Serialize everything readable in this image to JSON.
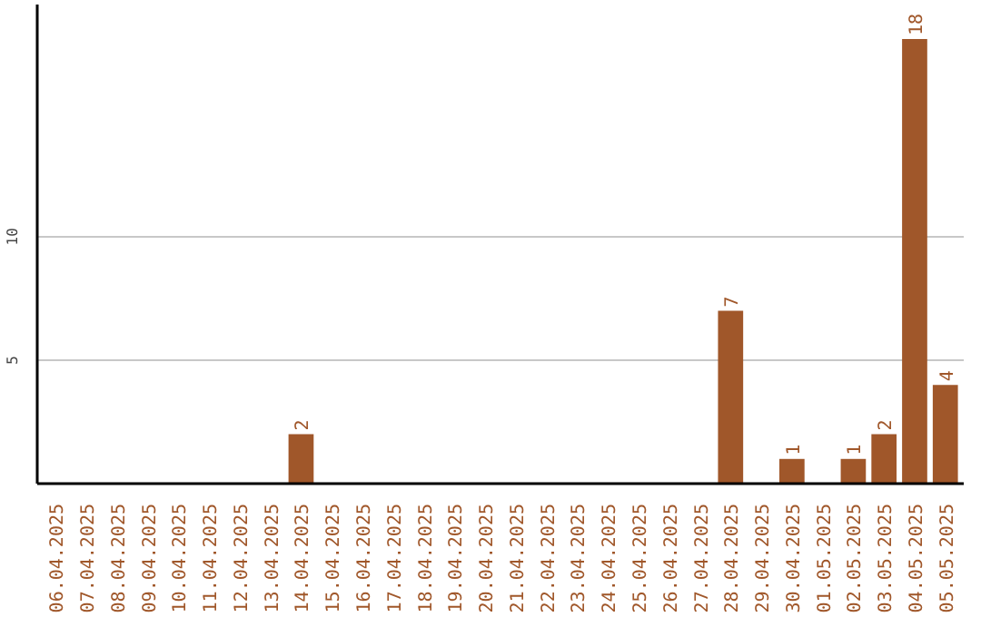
{
  "chart_data": {
    "type": "bar",
    "categories": [
      "06.04.2025",
      "07.04.2025",
      "08.04.2025",
      "09.04.2025",
      "10.04.2025",
      "11.04.2025",
      "12.04.2025",
      "13.04.2025",
      "14.04.2025",
      "15.04.2025",
      "16.04.2025",
      "17.04.2025",
      "18.04.2025",
      "19.04.2025",
      "20.04.2025",
      "21.04.2025",
      "22.04.2025",
      "23.04.2025",
      "24.04.2025",
      "25.04.2025",
      "26.04.2025",
      "27.04.2025",
      "28.04.2025",
      "29.04.2025",
      "30.04.2025",
      "01.05.2025",
      "02.05.2025",
      "03.05.2025",
      "04.05.2025",
      "05.05.2025"
    ],
    "values": [
      0,
      0,
      0,
      0,
      0,
      0,
      0,
      0,
      2,
      0,
      0,
      0,
      0,
      0,
      0,
      0,
      0,
      0,
      0,
      0,
      0,
      0,
      7,
      0,
      1,
      0,
      1,
      2,
      18,
      4
    ],
    "value_labels": [
      null,
      null,
      null,
      null,
      null,
      null,
      null,
      null,
      "2",
      null,
      null,
      null,
      null,
      null,
      null,
      null,
      null,
      null,
      null,
      null,
      null,
      null,
      "7",
      null,
      "1",
      null,
      "1",
      "2",
      "18",
      "4"
    ],
    "color": "#a0572a",
    "ylim": [
      0,
      19.4
    ],
    "yticks": [
      5,
      10
    ],
    "grid": "y"
  }
}
